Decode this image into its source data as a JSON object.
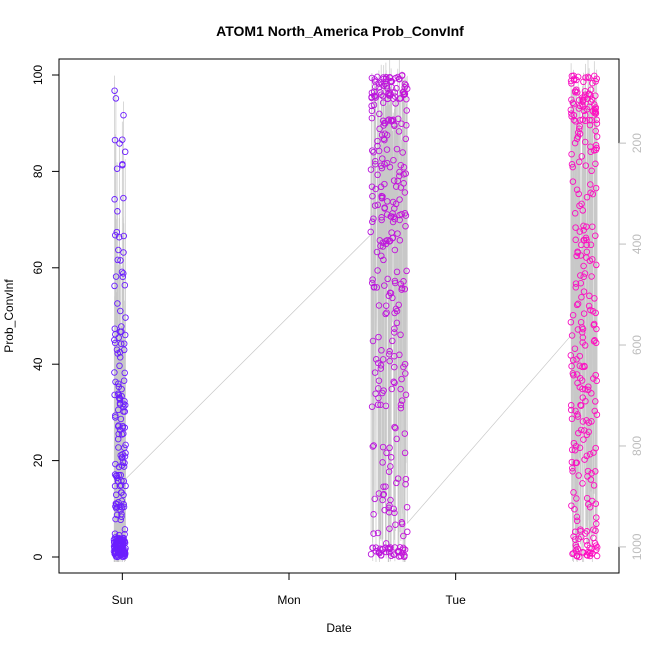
{
  "chart_data": {
    "type": "scatter",
    "title": "ATOM1 North_America Prob_ConvInf",
    "xlabel": "Date",
    "ylabel": "Prob_ConvInf",
    "ylim": [
      0,
      100
    ],
    "y_ticks": [
      "0",
      "20",
      "40",
      "60",
      "80",
      "100"
    ],
    "x_ticks": [
      {
        "label": "Sun",
        "day": 1
      },
      {
        "label": "Mon",
        "day": 2
      },
      {
        "label": "Tue",
        "day": 3
      }
    ],
    "xlim_days": [
      0.62,
      3.98
    ],
    "secondary_y": {
      "ticks": [
        "200",
        "400",
        "600",
        "800",
        "1000"
      ],
      "reversed": true,
      "range": [
        65,
        1020
      ],
      "color": "#bdbdbd"
    },
    "point_color_gradient": [
      "#6a1fff",
      "#ff10c0"
    ],
    "clusters": [
      {
        "center_day": 0.985,
        "spread_day": 0.035,
        "count": 230,
        "dist": "low"
      },
      {
        "center_day": 2.6,
        "spread_day": 0.11,
        "count": 330,
        "dist": "high"
      },
      {
        "center_day": 3.77,
        "spread_day": 0.08,
        "count": 290,
        "dist": "highwide"
      }
    ],
    "line_color": "#c8c8c8",
    "grid": false,
    "legend": "none"
  }
}
